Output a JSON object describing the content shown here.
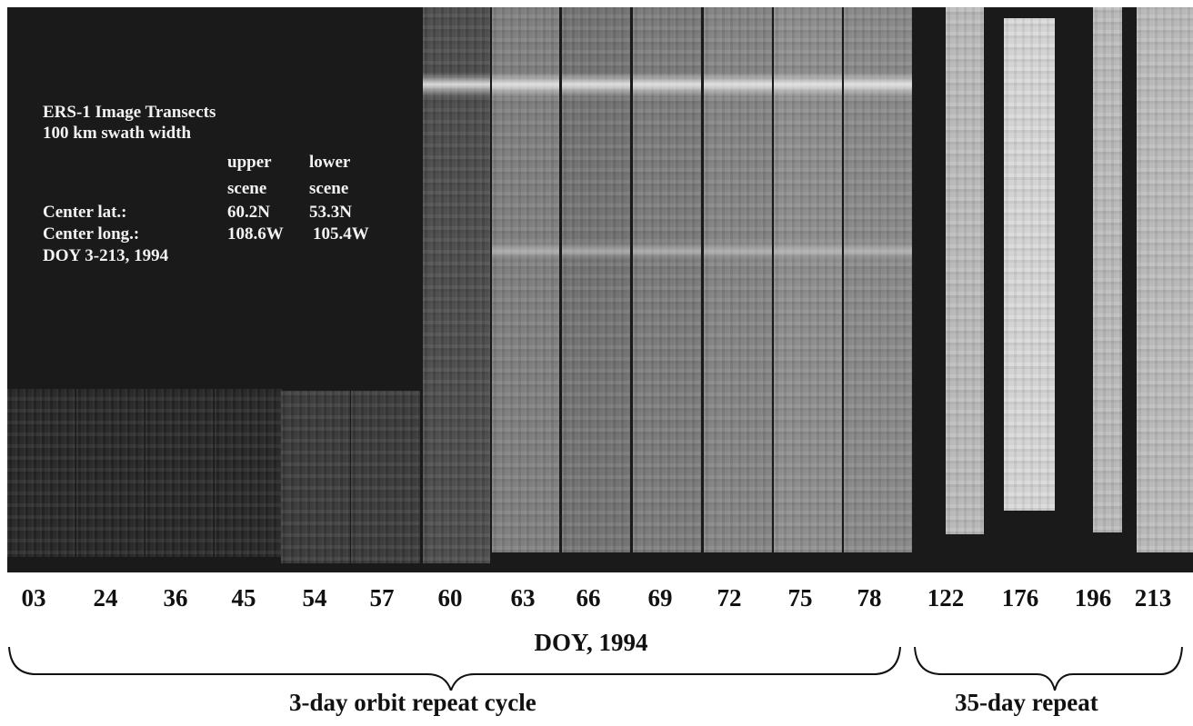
{
  "info_box": {
    "title": "ERS-1 Image Transects",
    "subtitle": "100 km swath width",
    "col_upper_line1": "upper",
    "col_upper_line2": "scene",
    "col_lower_line1": "lower",
    "col_lower_line2": "scene",
    "lat_label": "Center lat.:",
    "lat_upper": "60.2N",
    "lat_lower": "53.3N",
    "long_label": "Center long.:",
    "long_upper": "108.6W",
    "long_lower": "105.4W",
    "doy_range": "DOY 3-213, 1994"
  },
  "doy_labels": [
    "03",
    "24",
    "36",
    "45",
    "54",
    "57",
    "60",
    "63",
    "66",
    "69",
    "72",
    "75",
    "78",
    "122",
    "176",
    "196",
    "213"
  ],
  "axis_title": "DOY, 1994",
  "brackets": {
    "left_label": "3-day orbit repeat cycle",
    "right_label": "35-day repeat"
  },
  "colors": {
    "background": "#ffffff",
    "mosaic_dark": "#1a1a1a",
    "text": "#111111",
    "info_text": "#f2f2f2"
  }
}
